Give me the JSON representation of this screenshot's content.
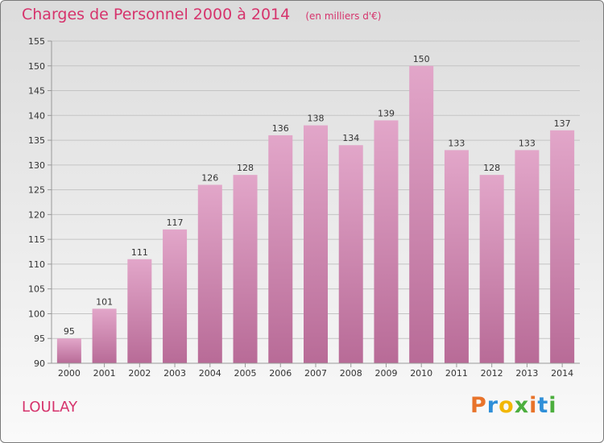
{
  "header": {
    "title": "Charges de Personnel 2000 à 2014",
    "unit": "(en milliers d'€)"
  },
  "footer": {
    "commune": "LOULAY",
    "brand_letters": [
      "P",
      "r",
      "o",
      "x",
      "i",
      "t",
      "i"
    ],
    "brand_colors": [
      "#e8732a",
      "#2f8fd8",
      "#f2b705",
      "#4cae3e",
      "#e8732a",
      "#2f8fd8",
      "#4cae3e"
    ]
  },
  "colors": {
    "accent": "#d6336c",
    "bar": "#d98fba",
    "axis": "#999999"
  },
  "chart_data": {
    "type": "bar",
    "categories": [
      "2000",
      "2001",
      "2002",
      "2003",
      "2004",
      "2005",
      "2006",
      "2007",
      "2008",
      "2009",
      "2010",
      "2011",
      "2012",
      "2013",
      "2014"
    ],
    "values": [
      95,
      101,
      111,
      117,
      126,
      128,
      136,
      138,
      134,
      139,
      150,
      133,
      128,
      133,
      137
    ],
    "title": "Charges de Personnel 2000 à 2014",
    "xlabel": "",
    "ylabel": "",
    "ylim": [
      90,
      155
    ],
    "yticks": [
      90,
      95,
      100,
      105,
      110,
      115,
      120,
      125,
      130,
      135,
      140,
      145,
      150,
      155
    ],
    "grid": true,
    "legend": "none"
  }
}
